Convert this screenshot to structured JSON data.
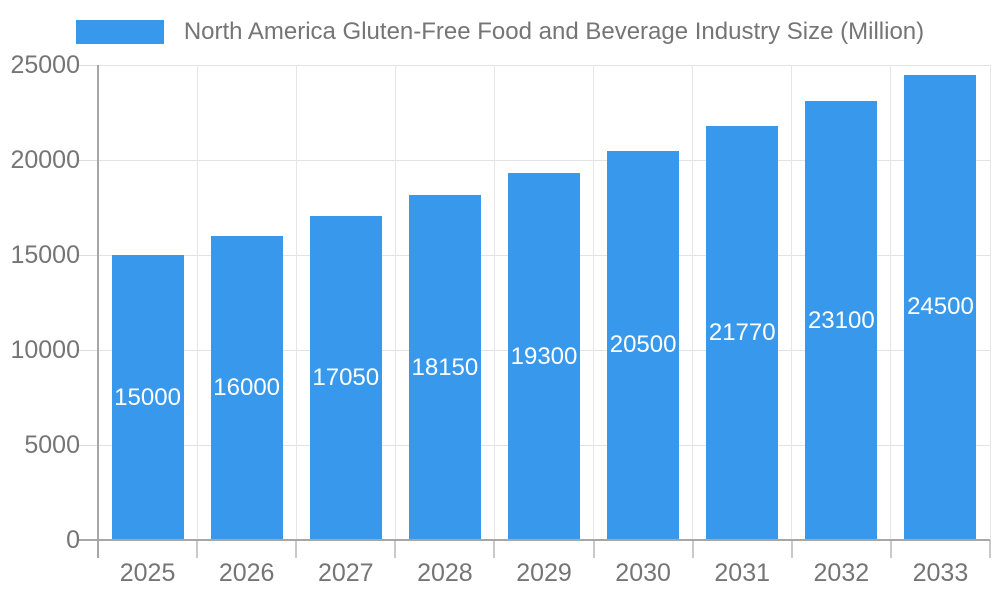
{
  "legend": {
    "label": "North America Gluten-Free Food and Beverage Industry Size (Million)"
  },
  "chart_data": {
    "type": "bar",
    "title": "North America Gluten-Free Food and Beverage Industry Size (Million)",
    "categories": [
      "2025",
      "2026",
      "2027",
      "2028",
      "2029",
      "2030",
      "2031",
      "2032",
      "2033"
    ],
    "values": [
      15000,
      16000,
      17050,
      18150,
      19300,
      20500,
      21770,
      23100,
      24500
    ],
    "series_name": "North America Gluten-Free Food and Beverage Industry Size (Million)",
    "xlabel": "",
    "ylabel": "",
    "ylim": [
      0,
      25000
    ],
    "y_ticks": [
      0,
      5000,
      10000,
      15000,
      20000,
      25000
    ],
    "grid": true,
    "legend_position": "top",
    "bar_color": "#3899ec",
    "value_label_color": "#ffffff",
    "axis_text_color": "#757575",
    "gridline_color": "#e3e3e3",
    "axis_line_color": "#a6a6a6"
  }
}
